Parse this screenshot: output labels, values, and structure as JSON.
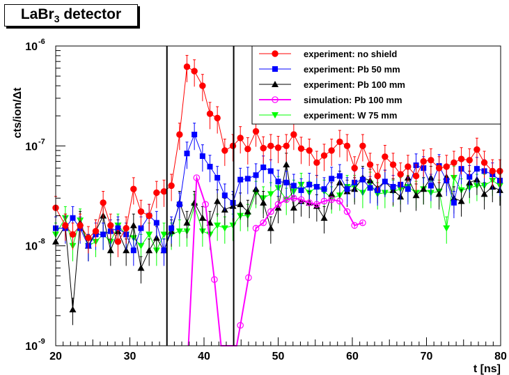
{
  "chart_data": {
    "type": "scatter",
    "title_main": "LaBr",
    "title_sub": "3",
    "title_rest": " detector",
    "xlabel": "t [ns]",
    "ylabel": "cts/ion/Δt",
    "xlim": [
      20,
      80
    ],
    "ylim": [
      1e-09,
      1e-06
    ],
    "log_y": true,
    "x_ticks": [
      20,
      30,
      40,
      50,
      60,
      70,
      80
    ],
    "x_tick_labels": [
      "20",
      "30",
      "40",
      "50",
      "60",
      "70",
      "80"
    ],
    "y_ticks": [
      1e-09,
      1e-08,
      1e-07,
      1e-06
    ],
    "y_tick_labels": [
      {
        "base": "10",
        "exp": "-9"
      },
      {
        "base": "10",
        "exp": "-8"
      },
      {
        "base": "10",
        "exp": "-7"
      },
      {
        "base": "10",
        "exp": "-6"
      }
    ],
    "vertical_lines": [
      35,
      44
    ],
    "legend_position": "top-right",
    "series": [
      {
        "name": "experiment: no shield",
        "color": "#ff0000",
        "marker": "circle",
        "x": [
          20,
          21.3,
          22.3,
          23.3,
          24.4,
          25.4,
          26.4,
          27.4,
          28.4,
          29.5,
          30.5,
          31.5,
          32.6,
          33.6,
          34.6,
          35.6,
          36.7,
          37.7,
          38.7,
          39.8,
          40.8,
          41.8,
          42.8,
          43.9,
          44.9,
          45.9,
          47.0,
          48.0,
          49.0,
          50.0,
          51.1,
          52.1,
          53.1,
          54.2,
          55.2,
          56.2,
          57.2,
          58.3,
          59.3,
          60.3,
          61.4,
          62.4,
          63.4,
          64.4,
          65.5,
          66.5,
          67.5,
          68.6,
          69.6,
          70.6,
          71.7,
          72.7,
          73.7,
          74.7,
          75.8,
          76.8,
          77.8,
          78.9,
          79.9
        ],
        "y": [
          2.4e-08,
          1.6e-08,
          1.3e-08,
          1.6e-08,
          1.2e-08,
          1.4e-08,
          2.7e-08,
          1.6e-08,
          1.1e-08,
          1.5e-08,
          3.7e-08,
          2.2e-08,
          2e-08,
          3.4e-08,
          3.5e-08,
          4e-08,
          1.3e-07,
          6.2e-07,
          5.6e-07,
          4e-07,
          2.1e-07,
          1.9e-07,
          9e-08,
          1e-07,
          1.2e-07,
          9.3e-08,
          1.4e-07,
          9.5e-08,
          1e-07,
          9.6e-08,
          1e-07,
          1.3e-07,
          9.4e-08,
          9e-08,
          6.8e-08,
          8e-08,
          9e-08,
          1.1e-07,
          1e-07,
          6e-08,
          1e-07,
          6.5e-08,
          5e-08,
          7.8e-08,
          6.5e-08,
          5.2e-08,
          6.2e-08,
          5e-08,
          7e-08,
          7.2e-08,
          6e-08,
          6.2e-08,
          6.8e-08,
          7.4e-08,
          7.2e-08,
          9.2e-08,
          6.8e-08,
          5.6e-08,
          5.6e-08
        ],
        "err_frac": 0.3
      },
      {
        "name": "experiment: Pb 50 mm",
        "color": "#0000ff",
        "marker": "square",
        "x": [
          20,
          21.3,
          22.3,
          23.3,
          24.4,
          25.4,
          26.4,
          27.4,
          28.4,
          29.5,
          30.5,
          31.5,
          32.6,
          33.6,
          34.6,
          35.6,
          36.7,
          37.7,
          38.7,
          39.8,
          40.8,
          41.8,
          42.8,
          43.9,
          44.9,
          45.9,
          47.0,
          48.0,
          49.0,
          50.0,
          51.1,
          52.1,
          53.1,
          54.2,
          55.2,
          56.2,
          57.2,
          58.3,
          59.3,
          60.3,
          61.4,
          62.4,
          63.4,
          64.4,
          65.5,
          66.5,
          67.5,
          68.6,
          69.6,
          70.6,
          71.7,
          72.7,
          73.7,
          74.7,
          75.8,
          76.8,
          77.8,
          78.9,
          79.9
        ],
        "y": [
          1.5e-08,
          1.5e-08,
          1.9e-08,
          1.5e-08,
          1e-08,
          1.3e-08,
          1.3e-08,
          1.4e-08,
          1.5e-08,
          1.3e-08,
          9e-09,
          1.5e-08,
          2e-08,
          1.7e-08,
          9e-09,
          1.5e-08,
          2.6e-08,
          8.4e-08,
          1.3e-07,
          7.9e-08,
          6.2e-08,
          4.8e-08,
          3.2e-08,
          2.7e-08,
          4.6e-08,
          4.7e-08,
          5.1e-08,
          6.1e-08,
          5.6e-08,
          4.4e-08,
          4.3e-08,
          4e-08,
          3.6e-08,
          4.1e-08,
          3.9e-08,
          3.7e-08,
          4.7e-08,
          5e-08,
          3.7e-08,
          4.3e-08,
          4.6e-08,
          3.8e-08,
          3.6e-08,
          4.4e-08,
          3.9e-08,
          4.1e-08,
          3.7e-08,
          6.4e-08,
          6e-08,
          4e-08,
          6.3e-08,
          4.5e-08,
          2.7e-08,
          5.9e-08,
          4.9e-08,
          5.9e-08,
          5.6e-08,
          5.2e-08,
          4.5e-08
        ],
        "err_frac": 0.3
      },
      {
        "name": "experiment: Pb 100 mm",
        "color": "#000000",
        "marker": "triangle-up",
        "x": [
          20,
          21.3,
          22.3,
          23.3,
          24.4,
          25.4,
          26.4,
          27.4,
          28.4,
          29.5,
          30.5,
          31.5,
          32.6,
          33.6,
          34.6,
          35.6,
          36.7,
          37.7,
          38.7,
          39.8,
          40.8,
          41.8,
          42.8,
          43.9,
          44.9,
          45.9,
          47.0,
          48.0,
          49.0,
          50.0,
          51.1,
          52.1,
          53.1,
          54.2,
          55.2,
          56.2,
          57.2,
          58.3,
          59.3,
          60.3,
          61.4,
          62.4,
          63.4,
          64.4,
          65.5,
          66.5,
          67.5,
          68.6,
          69.6,
          70.6,
          71.7,
          72.7,
          73.7,
          74.7,
          75.8,
          76.8,
          77.8,
          78.9,
          79.9
        ],
        "y": [
          1.1e-08,
          1.6e-08,
          2.3e-09,
          1.7e-08,
          1e-08,
          1.4e-08,
          2e-08,
          9e-09,
          1.4e-08,
          9e-09,
          1.6e-08,
          6e-09,
          9e-09,
          1.2e-08,
          9e-09,
          1.4e-08,
          2.7e-08,
          1.7e-08,
          2.7e-08,
          1.9e-08,
          1.7e-08,
          2.8e-08,
          2.3e-08,
          2.5e-08,
          2.6e-08,
          2.2e-08,
          3.7e-08,
          2.7e-08,
          1.5e-08,
          2.4e-08,
          6.5e-08,
          2.4e-08,
          2.8e-08,
          2.7e-08,
          2.5e-08,
          1.9e-08,
          3.3e-08,
          4.3e-08,
          3.5e-08,
          3.7e-08,
          4.8e-08,
          4.5e-08,
          3.8e-08,
          4.4e-08,
          3.6e-08,
          3.1e-08,
          4.8e-08,
          3.2e-08,
          3.7e-08,
          4.8e-08,
          3.3e-08,
          4.9e-08,
          3e-08,
          2.8e-08,
          4.3e-08,
          4.6e-08,
          3.3e-08,
          3.9e-08,
          3.6e-08
        ],
        "err_frac": 0.3
      },
      {
        "name": "simulation: Pb 100 mm",
        "color": "#ff00ff",
        "marker": "open-circle",
        "x": [
          37.9,
          39.0,
          40.2,
          41.4,
          42.3,
          44.4,
          44.9,
          46.0,
          47.0,
          48.0,
          49.0,
          50.0,
          51.1,
          52.1,
          53.1,
          54.2,
          55.2,
          56.2,
          57.2,
          58.3,
          59.3,
          60.3,
          61.4
        ],
        "y": [
          1e-09,
          4.8e-08,
          2.6e-08,
          4.6e-09,
          1e-09,
          1e-09,
          1.6e-09,
          4.8e-09,
          1.5e-08,
          1.7e-08,
          2.2e-08,
          2.6e-08,
          2.9e-08,
          3e-08,
          2.9e-08,
          2.7e-08,
          2.6e-08,
          2.8e-08,
          2.9e-08,
          2.8e-08,
          2.2e-08,
          1.6e-08,
          1.7e-08
        ],
        "marked": [
          false,
          true,
          true,
          true,
          false,
          false,
          true,
          true,
          true,
          true,
          true,
          true,
          true,
          true,
          true,
          true,
          true,
          true,
          true,
          true,
          true,
          true,
          true
        ],
        "err_frac": 0.05
      },
      {
        "name": "experiment: W 75 mm",
        "color": "#00ff00",
        "marker": "triangle-down",
        "x": [
          20,
          21.3,
          22.3,
          23.3,
          24.4,
          25.4,
          26.4,
          27.4,
          28.4,
          29.5,
          30.5,
          31.5,
          32.6,
          33.6,
          34.6,
          35.6,
          36.7,
          37.7,
          38.7,
          39.8,
          40.8,
          41.8,
          42.8,
          43.9,
          44.9,
          45.9,
          47.0,
          48.0,
          49.0,
          50.0,
          51.1,
          52.1,
          53.1,
          54.2,
          55.2,
          56.2,
          57.2,
          58.3,
          59.3,
          60.3,
          61.4,
          62.4,
          63.4,
          64.4,
          65.5,
          66.5,
          67.5,
          68.6,
          69.6,
          70.6,
          71.7,
          72.7,
          73.7,
          74.7,
          75.8,
          76.8,
          77.8,
          78.9,
          79.9
        ],
        "y": [
          1.3e-08,
          1.9e-08,
          1e-08,
          1.8e-08,
          1e-08,
          1.1e-08,
          1.3e-08,
          1.1e-08,
          1.6e-08,
          1.3e-08,
          1.2e-08,
          1e-08,
          1.3e-08,
          9e-09,
          1.3e-08,
          1.3e-08,
          1.4e-08,
          1.4e-08,
          2.5e-08,
          1.4e-08,
          1.3e-08,
          1.6e-08,
          1.5e-08,
          1.6e-08,
          2e-08,
          2e-08,
          3.4e-08,
          3e-08,
          3.3e-08,
          3.8e-08,
          2.9e-08,
          3.5e-08,
          4.1e-08,
          3.4e-08,
          3.9e-08,
          3.5e-08,
          3e-08,
          3.2e-08,
          3.9e-08,
          3.9e-08,
          3.4e-08,
          4.2e-08,
          3.3e-08,
          3.4e-08,
          3.5e-08,
          3.7e-08,
          3.9e-08,
          3.4e-08,
          3.7e-08,
          3.4e-08,
          3.5e-08,
          1.5e-08,
          4.8e-08,
          3.6e-08,
          3.8e-08,
          4e-08,
          4e-08,
          4.5e-08,
          4e-08
        ],
        "err_frac": 0.3
      }
    ]
  }
}
